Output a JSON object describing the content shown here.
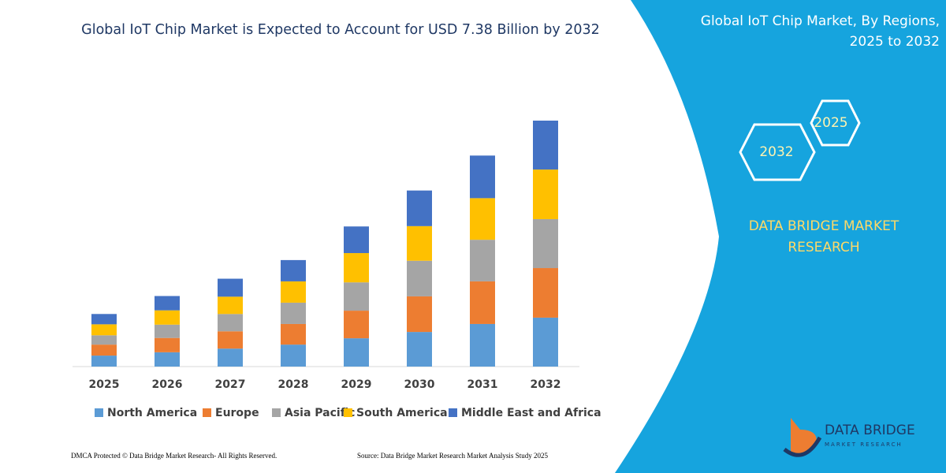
{
  "chart_data": {
    "type": "stacked-bar",
    "title": "Global IoT Chip Market is Expected to Account for USD 7.38 Billion by 2032",
    "categories": [
      "2025",
      "2026",
      "2027",
      "2028",
      "2029",
      "2030",
      "2031",
      "2032"
    ],
    "series": [
      {
        "name": "North America",
        "color": "#5b9bd5",
        "values": [
          0.33,
          0.43,
          0.54,
          0.66,
          0.85,
          1.04,
          1.28,
          1.47
        ]
      },
      {
        "name": "Europe",
        "color": "#ed7d31",
        "values": [
          0.33,
          0.43,
          0.52,
          0.62,
          0.83,
          1.07,
          1.28,
          1.49
        ]
      },
      {
        "name": "Asia Pacific",
        "color": "#a5a5a5",
        "values": [
          0.28,
          0.4,
          0.52,
          0.64,
          0.85,
          1.07,
          1.25,
          1.47
        ]
      },
      {
        "name": "South America",
        "color": "#ffc000",
        "values": [
          0.33,
          0.43,
          0.52,
          0.64,
          0.88,
          1.04,
          1.25,
          1.49
        ]
      },
      {
        "name": "Middle East and Africa",
        "color": "#4472c4",
        "values": [
          0.31,
          0.43,
          0.54,
          0.64,
          0.8,
          1.07,
          1.28,
          1.47
        ]
      }
    ]
  },
  "panel": {
    "title": "Global IoT Chip Market, By Regions, 2025 to 2032",
    "hex_left": "2032",
    "hex_right": "2025",
    "brand": "DATA BRIDGE MARKET RESEARCH"
  },
  "logo": {
    "name": "DATA BRIDGE",
    "tagline": "MARKET RESEARCH"
  },
  "footer": {
    "left": "DMCA Protected © Data Bridge Market Research-  All Rights Reserved.",
    "right": "Source: Data Bridge Market Research  Market Analysis Study 2025"
  }
}
